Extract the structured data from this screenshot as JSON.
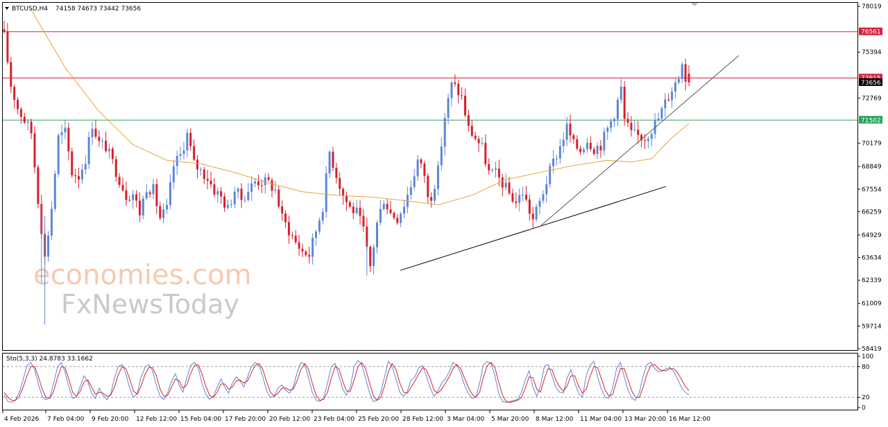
{
  "header": {
    "symbol": "BTCUSD,H4",
    "ohlc": "74158 74673 73442 73656"
  },
  "stoch_header": "Sto(5,3,3) 24.8783 33.1662",
  "watermark": {
    "line1": "economies.com",
    "line2": "FxNewsToday"
  },
  "colors": {
    "up_candle": "#5b86d6",
    "down_candle": "#d6202c",
    "ma": "#e8a33a",
    "resistance": "#d6203c",
    "support": "#28a35a",
    "trendline": "#000000",
    "stoch_main": "#5b86d6",
    "stoch_signal": "#d6202c"
  },
  "chart_data": [
    {
      "type": "candlestick",
      "symbol": "BTCUSD",
      "timeframe": "H4",
      "price_axis_ticks": [
        78019,
        76561,
        75394,
        73915,
        73656,
        72769,
        71502,
        70179,
        68849,
        67554,
        66259,
        64929,
        63634,
        62339,
        61009,
        59714,
        58419
      ],
      "ylim": [
        58419,
        78019
      ],
      "time_axis_ticks": [
        "4 Feb 2026",
        "7 Feb 04:00",
        "9 Feb 20:00",
        "12 Feb 12:00",
        "15 Feb 04:00",
        "17 Feb 20:00",
        "20 Feb 12:00",
        "23 Feb 04:00",
        "25 Feb 20:00",
        "28 Feb 12:00",
        "3 Mar 04:00",
        "5 Mar 20:00",
        "8 Mar 12:00",
        "11 Mar 04:00",
        "13 Mar 20:00",
        "16 Mar 12:00"
      ],
      "close_path": [
        [
          0,
          76300
        ],
        [
          2,
          73500
        ],
        [
          4,
          72200
        ],
        [
          6,
          71500
        ],
        [
          8,
          70800
        ],
        [
          10,
          67000
        ],
        [
          11,
          65300
        ],
        [
          12,
          63600
        ],
        [
          14,
          66500
        ],
        [
          16,
          70500
        ],
        [
          18,
          70800
        ],
        [
          20,
          68500
        ],
        [
          22,
          68300
        ],
        [
          24,
          69300
        ],
        [
          26,
          71300
        ],
        [
          28,
          70200
        ],
        [
          30,
          70000
        ],
        [
          33,
          68600
        ],
        [
          36,
          67200
        ],
        [
          38,
          67300
        ],
        [
          40,
          66200
        ],
        [
          42,
          67700
        ],
        [
          44,
          67500
        ],
        [
          46,
          65900
        ],
        [
          48,
          66400
        ],
        [
          50,
          68900
        ],
        [
          52,
          69500
        ],
        [
          54,
          70700
        ],
        [
          56,
          69000
        ],
        [
          58,
          68600
        ],
        [
          60,
          68200
        ],
        [
          62,
          67500
        ],
        [
          64,
          67100
        ],
        [
          66,
          66400
        ],
        [
          68,
          67500
        ],
        [
          70,
          67000
        ],
        [
          72,
          67500
        ],
        [
          74,
          68000
        ],
        [
          76,
          68000
        ],
        [
          78,
          67900
        ],
        [
          80,
          67500
        ],
        [
          82,
          65900
        ],
        [
          84,
          65200
        ],
        [
          86,
          64500
        ],
        [
          88,
          64000
        ],
        [
          90,
          63800
        ],
        [
          92,
          65200
        ],
        [
          94,
          66600
        ],
        [
          96,
          69700
        ],
        [
          98,
          68400
        ],
        [
          100,
          67200
        ],
        [
          102,
          66500
        ],
        [
          104,
          66200
        ],
        [
          106,
          65200
        ],
        [
          107,
          64000
        ],
        [
          108,
          63100
        ],
        [
          110,
          65600
        ],
        [
          112,
          67000
        ],
        [
          114,
          66200
        ],
        [
          116,
          65900
        ],
        [
          118,
          66700
        ],
        [
          120,
          67800
        ],
        [
          122,
          69200
        ],
        [
          124,
          68400
        ],
        [
          125,
          67000
        ],
        [
          126,
          67200
        ],
        [
          128,
          68600
        ],
        [
          130,
          71700
        ],
        [
          132,
          73500
        ],
        [
          133,
          73400
        ],
        [
          135,
          72800
        ],
        [
          137,
          71000
        ],
        [
          139,
          70500
        ],
        [
          141,
          69900
        ],
        [
          143,
          68500
        ],
        [
          145,
          68400
        ],
        [
          147,
          67900
        ],
        [
          149,
          67300
        ],
        [
          151,
          66800
        ],
        [
          153,
          67400
        ],
        [
          155,
          66300
        ],
        [
          156,
          65800
        ],
        [
          158,
          66800
        ],
        [
          160,
          68000
        ],
        [
          162,
          69100
        ],
        [
          164,
          70000
        ],
        [
          166,
          71100
        ],
        [
          168,
          70100
        ],
        [
          170,
          69800
        ],
        [
          172,
          70400
        ],
        [
          174,
          69900
        ],
        [
          176,
          70100
        ],
        [
          178,
          71000
        ],
        [
          180,
          71900
        ],
        [
          182,
          73300
        ],
        [
          183,
          71500
        ],
        [
          185,
          70700
        ],
        [
          187,
          70600
        ],
        [
          189,
          70500
        ],
        [
          191,
          71000
        ],
        [
          193,
          71600
        ],
        [
          195,
          72500
        ],
        [
          197,
          73300
        ],
        [
          199,
          74000
        ],
        [
          200,
          75000
        ],
        [
          201,
          73900
        ],
        [
          202,
          73656
        ]
      ],
      "moving_average_path": [
        [
          8,
          77800
        ],
        [
          18,
          74500
        ],
        [
          28,
          72000
        ],
        [
          38,
          70100
        ],
        [
          48,
          69200
        ],
        [
          58,
          69000
        ],
        [
          68,
          68500
        ],
        [
          78,
          67900
        ],
        [
          88,
          67400
        ],
        [
          98,
          67200
        ],
        [
          108,
          67100
        ],
        [
          118,
          66900
        ],
        [
          128,
          66650
        ],
        [
          138,
          67200
        ],
        [
          148,
          68100
        ],
        [
          158,
          68500
        ],
        [
          168,
          68900
        ],
        [
          178,
          69200
        ],
        [
          185,
          69100
        ],
        [
          191,
          69300
        ],
        [
          197,
          70500
        ],
        [
          202,
          71300
        ]
      ],
      "horizontal_levels": [
        {
          "label": "76561",
          "value": 76561,
          "color_key": "resistance"
        },
        {
          "label": "73915",
          "value": 73915,
          "color_key": "resistance"
        },
        {
          "label": "73656",
          "value": 73656,
          "color_key": "current"
        },
        {
          "label": "71502",
          "value": 71502,
          "color_key": "support"
        }
      ],
      "trendlines": [
        {
          "from": [
            0,
            62900
          ],
          "to": [
            79,
            67700
          ]
        },
        {
          "from": [
            42,
            65400
          ],
          "to": [
            100,
            75200
          ]
        }
      ],
      "trendline_bar_offsets": [
        {
          "x0_bar": 117,
          "x1_bar": 196
        },
        {
          "x0_bar": 159,
          "x1_bar": 217
        }
      ],
      "grid": false
    },
    {
      "type": "line",
      "indicator": "Stochastic",
      "params": "5,3,3",
      "values_shown": [
        24.8783,
        33.1662
      ],
      "levels": [
        80,
        20
      ],
      "ylim": [
        0,
        100
      ],
      "y_ticks": [
        100,
        80,
        20,
        0
      ],
      "series": [
        {
          "name": "Main",
          "values": [
            25,
            12,
            10,
            15,
            30,
            55,
            82,
            88,
            74,
            45,
            22,
            15,
            20,
            48,
            78,
            88,
            70,
            40,
            18,
            20,
            42,
            62,
            50,
            28,
            18,
            38,
            24,
            15,
            26,
            58,
            80,
            84,
            66,
            38,
            20,
            28,
            60,
            78,
            84,
            72,
            44,
            22,
            16,
            30,
            52,
            66,
            44,
            30,
            58,
            82,
            88,
            78,
            48,
            26,
            16,
            22,
            40,
            56,
            40,
            28,
            48,
            60,
            52,
            40,
            60,
            80,
            88,
            82,
            60,
            32,
            20,
            22,
            38,
            44,
            34,
            28,
            40,
            68,
            88,
            84,
            58,
            30,
            14,
            12,
            20,
            48,
            80,
            86,
            62,
            36,
            24,
            40,
            80,
            92,
            84,
            58,
            30,
            12,
            14,
            30,
            60,
            90,
            80,
            56,
            30,
            22,
            32,
            54,
            60,
            78,
            82,
            62,
            38,
            22,
            32,
            48,
            56,
            70,
            88,
            82,
            68,
            44,
            28,
            18,
            20,
            48,
            84,
            90,
            86,
            62,
            28,
            12,
            10,
            12,
            14,
            16,
            30,
            54,
            72,
            40,
            22,
            42,
            80,
            84,
            62,
            40,
            30,
            28,
            58,
            74,
            48,
            28,
            20,
            62,
            82,
            90,
            60,
            36,
            20,
            18,
            40,
            76,
            88,
            60,
            34,
            18,
            14,
            30,
            62,
            84,
            88,
            76,
            70,
            72,
            76,
            78,
            70,
            56,
            40,
            30,
            25
          ]
        },
        {
          "name": "Signal",
          "values": [
            30,
            20,
            14,
            14,
            22,
            40,
            62,
            80,
            80,
            60,
            36,
            20,
            18,
            32,
            58,
            80,
            78,
            56,
            30,
            22,
            32,
            50,
            54,
            40,
            26,
            30,
            28,
            22,
            24,
            40,
            64,
            80,
            76,
            56,
            32,
            26,
            42,
            64,
            78,
            78,
            62,
            36,
            22,
            24,
            40,
            56,
            52,
            38,
            44,
            66,
            82,
            84,
            66,
            42,
            24,
            20,
            30,
            46,
            46,
            36,
            40,
            52,
            54,
            48,
            52,
            68,
            82,
            86,
            74,
            50,
            30,
            22,
            28,
            38,
            38,
            34,
            36,
            52,
            74,
            86,
            74,
            48,
            24,
            14,
            16,
            30,
            58,
            80,
            76,
            52,
            32,
            32,
            54,
            80,
            88,
            76,
            50,
            24,
            14,
            20,
            42,
            70,
            86,
            74,
            48,
            30,
            28,
            40,
            52,
            66,
            78,
            74,
            56,
            34,
            28,
            36,
            48,
            60,
            76,
            84,
            76,
            58,
            40,
            26,
            20,
            30,
            60,
            82,
            88,
            78,
            50,
            24,
            12,
            10,
            12,
            14,
            20,
            38,
            60,
            58,
            36,
            30,
            56,
            76,
            74,
            54,
            40,
            32,
            42,
            62,
            62,
            42,
            28,
            36,
            60,
            80,
            78,
            56,
            34,
            22,
            26,
            52,
            76,
            76,
            54,
            32,
            20,
            20,
            40,
            66,
            82,
            84,
            76,
            72,
            72,
            76,
            76,
            68,
            56,
            42,
            33
          ]
        }
      ]
    }
  ]
}
